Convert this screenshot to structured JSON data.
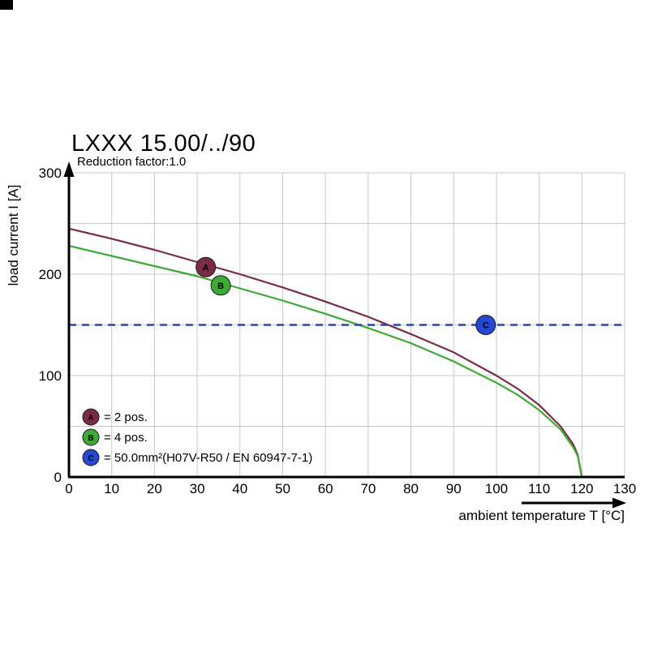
{
  "page": {
    "title": "LXXX 15.00/../90",
    "subtitle": "Reduction factor:1.0"
  },
  "chart_data": {
    "type": "line",
    "title": "LXXX 15.00/../90",
    "subtitle": "Reduction factor:1.0",
    "xlabel": "ambient temperature T [°C]",
    "ylabel": "load current I [A]",
    "xlim": [
      0,
      130
    ],
    "ylim": [
      0,
      300
    ],
    "x_ticks": [
      0,
      10,
      20,
      30,
      40,
      50,
      60,
      70,
      80,
      90,
      100,
      110,
      120,
      130
    ],
    "y_ticks": [
      0,
      100,
      200,
      300
    ],
    "x_grid_step": 10,
    "y_grid_step": 50,
    "grid": true,
    "grid_color": "#c9c9c9",
    "series": [
      {
        "name": "A",
        "label": "= 2 pos.",
        "color": "#7b2b44",
        "x": [
          0,
          10,
          20,
          30,
          40,
          50,
          60,
          70,
          80,
          90,
          100,
          105,
          110,
          115,
          118,
          119,
          120
        ],
        "y": [
          245,
          235,
          224,
          212,
          200,
          187,
          173,
          158,
          141,
          123,
          100,
          87,
          71,
          50,
          32,
          22,
          0
        ]
      },
      {
        "name": "B",
        "label": "= 4 pos.",
        "color": "#3caa33",
        "x": [
          0,
          10,
          20,
          30,
          40,
          50,
          60,
          70,
          80,
          90,
          100,
          105,
          110,
          115,
          118,
          119,
          120
        ],
        "y": [
          228,
          218,
          208,
          198,
          186,
          174,
          161,
          147,
          132,
          114,
          93,
          81,
          66,
          47,
          29,
          21,
          0
        ]
      },
      {
        "name": "C",
        "label": "= 50.0mm²(H07V-R50 / EN 60947-7-1)",
        "color": "#2342cc",
        "style": "dashed-hline",
        "value": 150
      }
    ],
    "markers": [
      {
        "name": "A",
        "x": 32,
        "y": 207,
        "fill": "#7b2b44"
      },
      {
        "name": "B",
        "x": 35.5,
        "y": 189,
        "fill": "#3caa33"
      },
      {
        "name": "C",
        "x": 97.5,
        "y": 150,
        "fill": "#2647d6"
      }
    ],
    "legend": {
      "position": "bottom-left",
      "items": [
        {
          "letter": "A",
          "label": "= 2 pos.",
          "fill": "#7b2b44"
        },
        {
          "letter": "B",
          "label": "= 4 pos.",
          "fill": "#3caa33"
        },
        {
          "letter": "C",
          "label": "= 50.0mm²(H07V-R50 / EN 60947-7-1)",
          "fill": "#2647d6"
        }
      ]
    }
  },
  "colors": {
    "axis": "#000000",
    "grid": "#c9c9c9",
    "background": "#ffffff",
    "corner_mark": "#000000"
  }
}
